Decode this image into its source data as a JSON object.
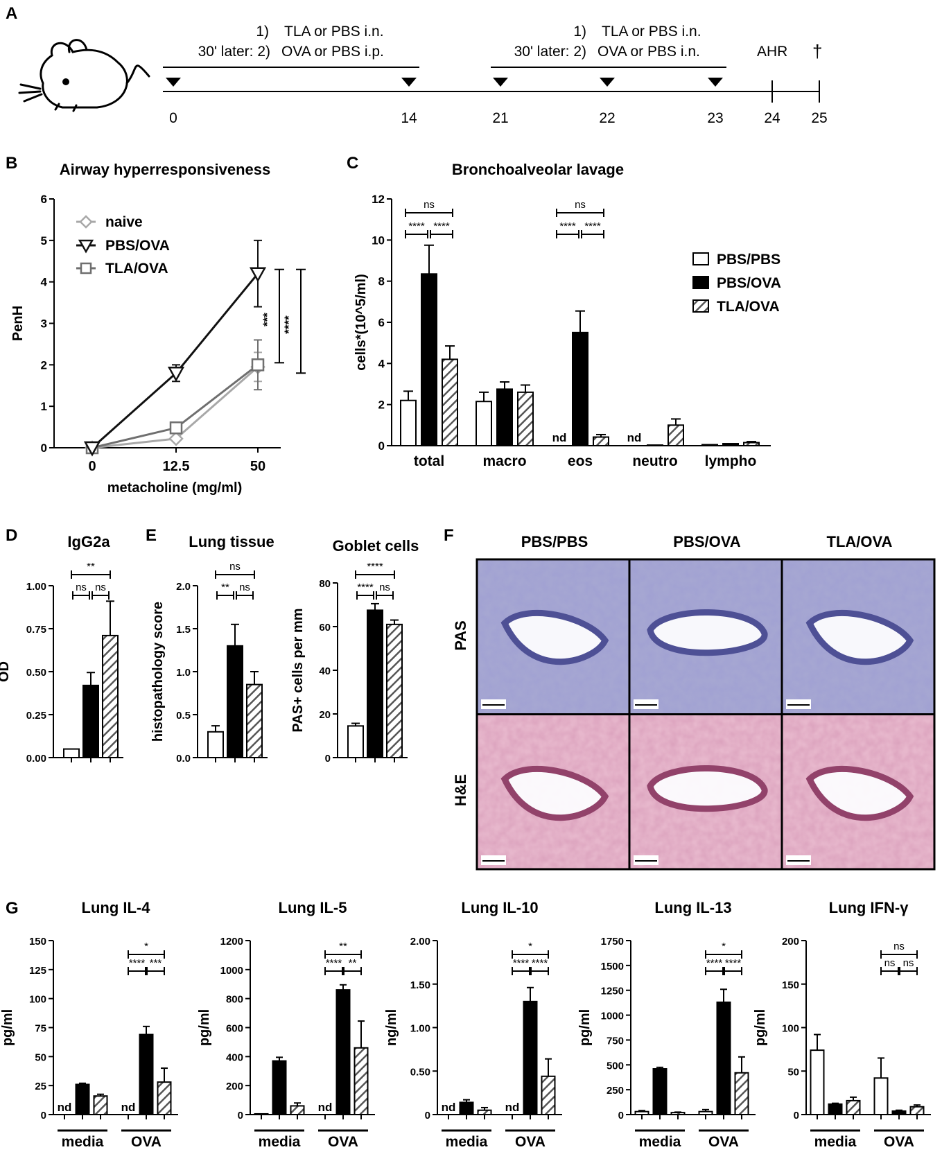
{
  "colors": {
    "white": "#ffffff",
    "black": "#000000",
    "hatch": "#555555",
    "naive": "#a8a8a8",
    "pbsova": "#111111",
    "tlaova": "#6f6f6f",
    "histology_pas": "#a6a7d2",
    "histology_he": "#e7b7cc"
  },
  "panelA": {
    "label": "A",
    "step1": "1)",
    "treat1": "TLA or PBS i.n.",
    "later": "30' later: 2)",
    "treat2_ip": "OVA or PBS i.p.",
    "treat2_in": "OVA or PBS i.n.",
    "ahr": "AHR",
    "dagger": "†",
    "days": [
      "0",
      "14",
      "21",
      "22",
      "23",
      "24",
      "25"
    ],
    "day_values": [
      0,
      14,
      21,
      22,
      23,
      24,
      25
    ],
    "arrow_days": [
      0,
      14,
      21,
      22,
      23
    ],
    "mouse_icon": "mouse-icon"
  },
  "chart_data": [
    {
      "id": "B",
      "type": "line",
      "title": "Airway hyperresponsiveness",
      "xlabel": "metacholine (mg/ml)",
      "ylabel": "PenH",
      "categories": [
        "0",
        "12.5",
        "50"
      ],
      "ylim": [
        0,
        6
      ],
      "yticks": [
        "0",
        "1",
        "2",
        "3",
        "4",
        "5",
        "6"
      ],
      "series": [
        {
          "name": "naive",
          "values": [
            0,
            0.22,
            1.95
          ],
          "err": [
            0,
            0.03,
            0.35
          ]
        },
        {
          "name": "PBS/OVA",
          "values": [
            0,
            1.8,
            4.2
          ],
          "err": [
            0,
            0.2,
            0.8
          ]
        },
        {
          "name": "TLA/OVA",
          "values": [
            0,
            0.48,
            2.0
          ],
          "err": [
            0,
            0.05,
            0.6
          ]
        }
      ],
      "sig": [
        {
          "label": "***",
          "from": 2.05,
          "to": 4.3
        },
        {
          "label": "****",
          "from": 1.8,
          "to": 4.3
        }
      ]
    },
    {
      "id": "C",
      "type": "bar",
      "title": "Bronchoalveolar lavage",
      "ylabel": "cells*(10^5/ml)",
      "categories": [
        "total",
        "macro",
        "eos",
        "neutro",
        "lympho"
      ],
      "ylim": [
        0,
        12
      ],
      "yticks": [
        "0",
        "2",
        "4",
        "6",
        "8",
        "10",
        "12"
      ],
      "series": [
        {
          "name": "PBS/PBS",
          "values": [
            2.2,
            2.15,
            0,
            0,
            0.05
          ],
          "err": [
            0.45,
            0.45,
            0,
            0,
            0
          ]
        },
        {
          "name": "PBS/OVA",
          "values": [
            8.35,
            2.75,
            5.5,
            0.03,
            0.1
          ],
          "err": [
            1.4,
            0.35,
            1.05,
            0,
            0
          ]
        },
        {
          "name": "TLA/OVA",
          "values": [
            4.2,
            2.6,
            0.42,
            1.0,
            0.15
          ],
          "err": [
            0.65,
            0.35,
            0.12,
            0.3,
            0.05
          ]
        }
      ],
      "nd": [
        {
          "cat": 2,
          "series": 0,
          "text": "nd"
        },
        {
          "cat": 3,
          "series": 0,
          "text": "nd"
        }
      ],
      "sig": [
        {
          "cat": 0,
          "top": "ns",
          "left": "****",
          "right": "****"
        },
        {
          "cat": 2,
          "top": "ns",
          "left": "****",
          "right": "****"
        }
      ]
    },
    {
      "id": "D",
      "type": "bar",
      "title": "IgG2a",
      "ylabel": "OD",
      "ylim": [
        0,
        1
      ],
      "yticks": [
        "0.00",
        "0.25",
        "0.50",
        "0.75",
        "1.00"
      ],
      "series": [
        {
          "name": "PBS/PBS",
          "values": [
            0.05
          ],
          "err": [
            0
          ]
        },
        {
          "name": "PBS/OVA",
          "values": [
            0.42
          ],
          "err": [
            0.075
          ]
        },
        {
          "name": "TLA/OVA",
          "values": [
            0.71
          ],
          "err": [
            0.2
          ]
        }
      ],
      "sig": {
        "top": "**",
        "left": "ns",
        "right": "ns"
      }
    },
    {
      "id": "E1",
      "type": "bar",
      "title": "Lung tissue",
      "ylabel": "histopathology score",
      "ylim": [
        0,
        2
      ],
      "yticks": [
        "0.0",
        "0.5",
        "1.0",
        "1.5",
        "2.0"
      ],
      "series": [
        {
          "name": "PBS/PBS",
          "values": [
            0.3
          ],
          "err": [
            0.07
          ]
        },
        {
          "name": "PBS/OVA",
          "values": [
            1.3
          ],
          "err": [
            0.25
          ]
        },
        {
          "name": "TLA/OVA",
          "values": [
            0.85
          ],
          "err": [
            0.15
          ]
        }
      ],
      "sig": {
        "top": "ns",
        "left": "**",
        "right": "ns"
      }
    },
    {
      "id": "E2",
      "type": "bar",
      "title": "Goblet cells",
      "ylabel": "PAS+ cells per mm",
      "ylim": [
        0,
        80
      ],
      "yticks": [
        "0",
        "20",
        "40",
        "60",
        "80"
      ],
      "series": [
        {
          "name": "PBS/PBS",
          "values": [
            14.5
          ],
          "err": [
            1.2
          ]
        },
        {
          "name": "PBS/OVA",
          "values": [
            67.5
          ],
          "err": [
            3
          ]
        },
        {
          "name": "TLA/OVA",
          "values": [
            61
          ],
          "err": [
            2
          ]
        }
      ],
      "sig": {
        "top": "****",
        "left": "****",
        "right": "ns"
      }
    },
    {
      "id": "G1",
      "type": "bar",
      "title": "Lung IL-4",
      "ylabel": "pg/ml",
      "groups": [
        "media",
        "OVA"
      ],
      "ylim": [
        0,
        150
      ],
      "yticks": [
        "0",
        "25",
        "50",
        "75",
        "100",
        "125",
        "150"
      ],
      "series": [
        {
          "name": "PBS/PBS",
          "values": [
            0,
            0
          ],
          "err": [
            0,
            0
          ]
        },
        {
          "name": "PBS/OVA",
          "values": [
            26,
            69
          ],
          "err": [
            1,
            7
          ]
        },
        {
          "name": "TLA/OVA",
          "values": [
            16,
            28
          ],
          "err": [
            1.5,
            12
          ]
        }
      ],
      "nd": [
        "nd",
        "nd"
      ],
      "sig": {
        "top": "*",
        "left": "****",
        "right": "***"
      }
    },
    {
      "id": "G2",
      "type": "bar",
      "title": "Lung IL-5",
      "ylabel": "pg/ml",
      "groups": [
        "media",
        "OVA"
      ],
      "ylim": [
        0,
        1200
      ],
      "yticks": [
        "0",
        "200",
        "400",
        "600",
        "800",
        "1000",
        "1200"
      ],
      "series": [
        {
          "name": "PBS/PBS",
          "values": [
            5,
            0
          ],
          "err": [
            0,
            0
          ]
        },
        {
          "name": "PBS/OVA",
          "values": [
            370,
            860
          ],
          "err": [
            25,
            35
          ]
        },
        {
          "name": "TLA/OVA",
          "values": [
            60,
            460
          ],
          "err": [
            20,
            185
          ]
        }
      ],
      "nd": [
        "",
        "nd"
      ],
      "sig": {
        "top": "**",
        "left": "****",
        "right": "**"
      }
    },
    {
      "id": "G3",
      "type": "bar",
      "title": "Lung IL-10",
      "ylabel": "ng/ml",
      "groups": [
        "media",
        "OVA"
      ],
      "ylim": [
        0,
        2
      ],
      "yticks": [
        "0",
        "0.50",
        "1.00",
        "1.50",
        "2.00"
      ],
      "series": [
        {
          "name": "PBS/PBS",
          "values": [
            0,
            0
          ],
          "err": [
            0,
            0
          ]
        },
        {
          "name": "PBS/OVA",
          "values": [
            0.14,
            1.3
          ],
          "err": [
            0.03,
            0.16
          ]
        },
        {
          "name": "TLA/OVA",
          "values": [
            0.05,
            0.44
          ],
          "err": [
            0.03,
            0.2
          ]
        }
      ],
      "nd": [
        "nd",
        "nd"
      ],
      "sig": {
        "top": "*",
        "left": "****",
        "right": "****"
      }
    },
    {
      "id": "G4",
      "type": "bar",
      "title": "Lung IL-13",
      "ylabel": "pg/ml",
      "groups": [
        "media",
        "OVA"
      ],
      "ylim": [
        0,
        1750
      ],
      "yticks": [
        "0",
        "250",
        "500",
        "750",
        "1000",
        "1250",
        "1500",
        "1750"
      ],
      "series": [
        {
          "name": "PBS/PBS",
          "values": [
            30,
            30
          ],
          "err": [
            10,
            20
          ]
        },
        {
          "name": "PBS/OVA",
          "values": [
            460,
            1130
          ],
          "err": [
            15,
            130
          ]
        },
        {
          "name": "TLA/OVA",
          "values": [
            20,
            420
          ],
          "err": [
            5,
            160
          ]
        }
      ],
      "nd": [
        "",
        ""
      ],
      "sig": {
        "top": "*",
        "left": "****",
        "right": "****"
      }
    },
    {
      "id": "G5",
      "type": "bar",
      "title": "Lung IFN-γ",
      "ylabel": "pg/ml",
      "groups": [
        "media",
        "OVA"
      ],
      "ylim": [
        0,
        200
      ],
      "yticks": [
        "0",
        "50",
        "100",
        "150",
        "200"
      ],
      "series": [
        {
          "name": "PBS/PBS",
          "values": [
            74,
            42
          ],
          "err": [
            18,
            23
          ]
        },
        {
          "name": "PBS/OVA",
          "values": [
            12,
            4
          ],
          "err": [
            1,
            1
          ]
        },
        {
          "name": "TLA/OVA",
          "values": [
            16,
            9
          ],
          "err": [
            4,
            2
          ]
        }
      ],
      "nd": [
        "",
        ""
      ],
      "sig": {
        "top": "ns",
        "left": "ns",
        "right": "ns"
      }
    }
  ],
  "panelLabels": {
    "B": "B",
    "C": "C",
    "D": "D",
    "E": "E",
    "F": "F",
    "G": "G"
  },
  "panelF": {
    "columns": [
      "PBS/PBS",
      "PBS/OVA",
      "TLA/OVA"
    ],
    "rows": [
      "PAS",
      "H&E"
    ]
  }
}
